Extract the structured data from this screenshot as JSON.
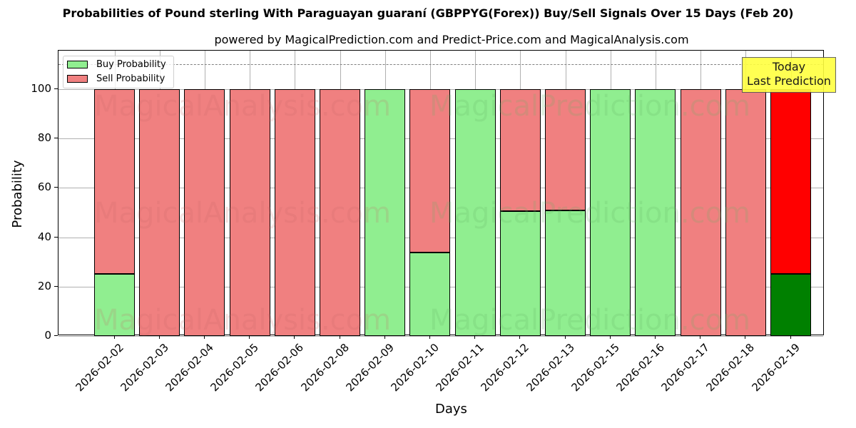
{
  "header": {
    "title": "Probabilities of Pound sterling With Paraguayan guaraní (GBPPYG(Forex)) Buy/Sell Signals Over 15 Days (Feb 20)",
    "subtitle": "powered by MagicalPrediction.com and Predict-Price.com and MagicalAnalysis.com"
  },
  "legend": {
    "buy": "Buy Probability",
    "sell": "Sell Probability"
  },
  "annotation": {
    "line1": "Today",
    "line2": "Last Prediction"
  },
  "watermarks": [
    "MagicalAnalysis.com",
    "MagicalPrediction.com"
  ],
  "colors": {
    "buy": "#90ee90",
    "sell": "#f08080",
    "today_buy": "#008000",
    "today_sell": "#ff0000",
    "annotation_bg": "#ffff40"
  },
  "chart_data": {
    "type": "bar",
    "stacked": true,
    "title": "Probabilities of Pound sterling With Paraguayan guaraní (GBPPYG(Forex)) Buy/Sell Signals Over 15 Days (Feb 20)",
    "subtitle": "powered by MagicalPrediction.com and Predict-Price.com and MagicalAnalysis.com",
    "xlabel": "Days",
    "ylabel": "Probability",
    "ylim": [
      0,
      115
    ],
    "yticks": [
      0,
      20,
      40,
      60,
      80,
      100
    ],
    "grid": true,
    "legend_position": "upper left",
    "reference_line": 110,
    "categories": [
      "2026-02-02",
      "2026-02-03",
      "2026-02-04",
      "2026-02-05",
      "2026-02-06",
      "2026-02-08",
      "2026-02-09",
      "2026-02-10",
      "2026-02-11",
      "2026-02-12",
      "2026-02-13",
      "2026-02-15",
      "2026-02-16",
      "2026-02-17",
      "2026-02-18",
      "2026-02-19"
    ],
    "series": [
      {
        "name": "Buy Probability",
        "values": [
          25.1,
          0,
          0,
          0,
          0,
          0,
          100,
          33.8,
          100,
          50.6,
          51.0,
          100,
          100,
          0,
          0,
          25.1
        ]
      },
      {
        "name": "Sell Probability",
        "values": [
          74.9,
          100,
          100,
          100,
          100,
          100,
          0,
          66.2,
          0,
          49.4,
          49.0,
          0,
          0,
          100,
          100,
          74.9
        ]
      }
    ],
    "annotations": [
      {
        "text": "Today\nLast Prediction",
        "x": "2026-02-19"
      }
    ]
  }
}
